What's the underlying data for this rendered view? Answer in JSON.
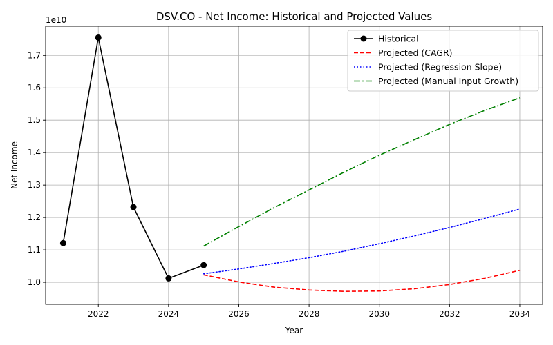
{
  "chart_data": {
    "type": "line",
    "title": "DSV.CO - Net Income: Historical and Projected Values",
    "xlabel": "Year",
    "ylabel": "Net Income",
    "y_offset_text": "1e10",
    "y_scale_exponent": 10,
    "xlim": [
      2020.5,
      2034.65
    ],
    "ylim": [
      0.932,
      1.79
    ],
    "x_ticks": [
      2022,
      2024,
      2026,
      2028,
      2030,
      2032,
      2034
    ],
    "y_ticks": [
      1.0,
      1.1,
      1.2,
      1.3,
      1.4,
      1.5,
      1.6,
      1.7
    ],
    "y_tick_labels": [
      "1.0",
      "1.1",
      "1.2",
      "1.3",
      "1.4",
      "1.5",
      "1.6",
      "1.7"
    ],
    "grid": true,
    "legend_position": "top-right",
    "series": [
      {
        "name": "Historical",
        "style": "solid",
        "marker": "circle",
        "color": "#000000",
        "x": [
          2021,
          2022,
          2023,
          2024,
          2025
        ],
        "y": [
          1.121,
          1.755,
          1.232,
          1.012,
          1.053
        ]
      },
      {
        "name": "Projected (CAGR)",
        "style": "dashed",
        "color": "#ff0000",
        "x": [
          2025,
          2026,
          2027,
          2028,
          2029,
          2030,
          2031,
          2032,
          2033,
          2034
        ],
        "y": [
          1.023,
          1.001,
          0.985,
          0.976,
          0.972,
          0.973,
          0.98,
          0.993,
          1.012,
          1.037
        ]
      },
      {
        "name": "Projected (Regression Slope)",
        "style": "dotted",
        "color": "#0000ff",
        "x": [
          2025,
          2026,
          2027,
          2028,
          2029,
          2030,
          2031,
          2032,
          2033,
          2034
        ],
        "y": [
          1.026,
          1.041,
          1.058,
          1.076,
          1.096,
          1.119,
          1.143,
          1.169,
          1.197,
          1.226
        ]
      },
      {
        "name": "Projected (Manual Input Growth)",
        "style": "dashdot",
        "color": "#008000",
        "x": [
          2025,
          2026,
          2027,
          2028,
          2029,
          2030,
          2031,
          2032,
          2033,
          2034
        ],
        "y": [
          1.112,
          1.172,
          1.23,
          1.285,
          1.34,
          1.392,
          1.44,
          1.487,
          1.53,
          1.569
        ]
      }
    ]
  }
}
